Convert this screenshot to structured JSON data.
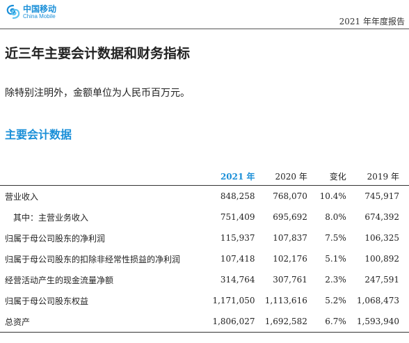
{
  "header": {
    "logo_cn": "中国移动",
    "logo_en": "China Mobile",
    "report_tag": "2021 年年度报告",
    "brand_color": "#1a8fd8"
  },
  "page_title": "近三年主要会计数据和财务指标",
  "note": "除特别注明外，金额单位为人民币百万元。",
  "section_title": "主要会计数据",
  "table": {
    "headers": [
      "",
      "2021 年",
      "2020 年",
      "变化",
      "2019 年"
    ],
    "rows": [
      {
        "label": "营业收入",
        "indent": false,
        "values": [
          "848,258",
          "768,070",
          "10.4%",
          "745,917"
        ]
      },
      {
        "label": "其中：主营业务收入",
        "indent": true,
        "values": [
          "751,409",
          "695,692",
          "8.0%",
          "674,392"
        ]
      },
      {
        "label": "归属于母公司股东的净利润",
        "indent": false,
        "values": [
          "115,937",
          "107,837",
          "7.5%",
          "106,325"
        ]
      },
      {
        "label": "归属于母公司股东的扣除非经常性损益的净利润",
        "indent": false,
        "values": [
          "107,418",
          "102,176",
          "5.1%",
          "100,892"
        ]
      },
      {
        "label": "经营活动产生的现金流量净额",
        "indent": false,
        "values": [
          "314,764",
          "307,761",
          "2.3%",
          "247,591"
        ]
      },
      {
        "label": "归属于母公司股东权益",
        "indent": false,
        "values": [
          "1,171,050",
          "1,113,616",
          "5.2%",
          "1,068,473"
        ]
      },
      {
        "label": "总资产",
        "indent": false,
        "values": [
          "1,806,027",
          "1,692,582",
          "6.7%",
          "1,593,940"
        ]
      }
    ]
  }
}
